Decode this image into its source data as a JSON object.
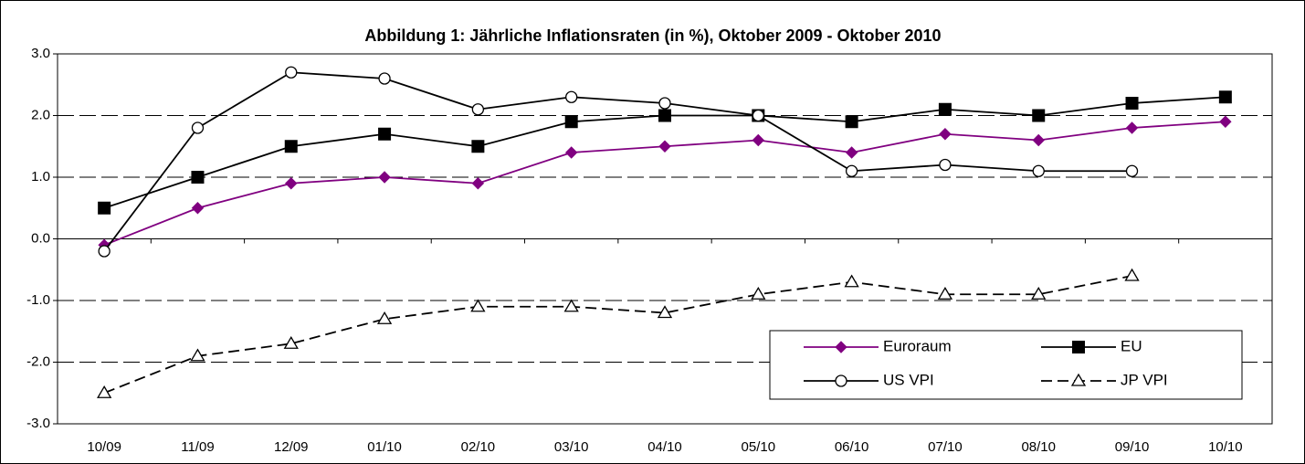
{
  "chart_data": {
    "type": "line",
    "title": "Abbildung 1: Jährliche Inflationsraten (in %), Oktober 2009 - Oktober 2010",
    "categories": [
      "10/09",
      "11/09",
      "12/09",
      "01/10",
      "02/10",
      "03/10",
      "04/10",
      "05/10",
      "06/10",
      "07/10",
      "08/10",
      "09/10",
      "10/10"
    ],
    "series": [
      {
        "name": "Euroraum",
        "color": "#800080",
        "marker": "diamond",
        "dashed": false,
        "values": [
          -0.1,
          0.5,
          0.9,
          1.0,
          0.9,
          1.4,
          1.5,
          1.6,
          1.4,
          1.7,
          1.6,
          1.8,
          1.9
        ]
      },
      {
        "name": "EU",
        "color": "#000000",
        "marker": "square",
        "dashed": false,
        "values": [
          0.5,
          1.0,
          1.5,
          1.7,
          1.5,
          1.9,
          2.0,
          2.0,
          1.9,
          2.1,
          2.0,
          2.2,
          2.3
        ]
      },
      {
        "name": "US VPI",
        "color": "#000000",
        "marker": "circle",
        "dashed": false,
        "values": [
          -0.2,
          1.8,
          2.7,
          2.6,
          2.1,
          2.3,
          2.2,
          2.0,
          1.1,
          1.2,
          1.1,
          1.1,
          null
        ]
      },
      {
        "name": "JP VPI",
        "color": "#000000",
        "marker": "triangle",
        "dashed": true,
        "values": [
          -2.5,
          -1.9,
          -1.7,
          -1.3,
          -1.1,
          -1.1,
          -1.2,
          -0.9,
          -0.7,
          -0.9,
          -0.9,
          -0.6,
          null
        ]
      }
    ],
    "ylim": [
      -3,
      3
    ],
    "yticks": [
      {
        "value": -3,
        "label": "-3.0"
      },
      {
        "value": -2,
        "label": "-2.0"
      },
      {
        "value": -1,
        "label": "-1.0"
      },
      {
        "value": 0,
        "label": "0.0"
      },
      {
        "value": 1,
        "label": "1.0"
      },
      {
        "value": 2,
        "label": "2.0"
      },
      {
        "value": 3,
        "label": "3.0"
      }
    ],
    "grid": true
  }
}
